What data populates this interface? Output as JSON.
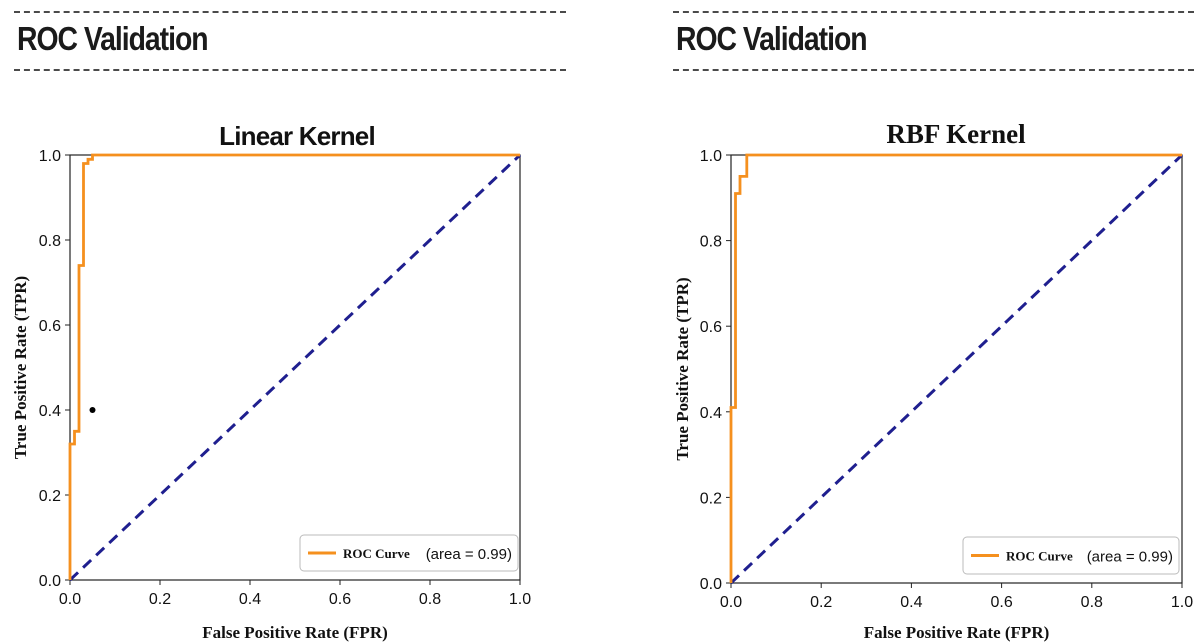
{
  "headers": [
    {
      "title": "ROC Validation"
    },
    {
      "title": "ROC Validation"
    }
  ],
  "chart_data": [
    {
      "type": "line",
      "title": "Linear Kernel",
      "xlabel": "False Positive Rate (FPR)",
      "ylabel": "True Positive Rate (TPR)",
      "xlim": [
        0.0,
        1.0
      ],
      "ylim": [
        0.0,
        1.0
      ],
      "xticks": [
        "0.0",
        "0.2",
        "0.4",
        "0.6",
        "0.8",
        "1.0"
      ],
      "yticks": [
        "0.0",
        "0.2",
        "0.4",
        "0.6",
        "0.8",
        "1.0"
      ],
      "grid": false,
      "legend_position": "lower-right",
      "legend": {
        "label": "ROC Curve",
        "area_text": "(area = 0.99)"
      },
      "series": [
        {
          "name": "ROC Curve",
          "color": "#f5901e",
          "style": "solid",
          "x": [
            0.0,
            0.0,
            0.01,
            0.01,
            0.02,
            0.02,
            0.03,
            0.03,
            0.04,
            0.04,
            0.05,
            0.05,
            1.0
          ],
          "y": [
            0.0,
            0.32,
            0.32,
            0.35,
            0.35,
            0.74,
            0.74,
            0.98,
            0.98,
            0.99,
            0.99,
            1.0,
            1.0
          ]
        },
        {
          "name": "",
          "color": "#1f1f8f",
          "style": "dashed",
          "x": [
            0.0,
            1.0
          ],
          "y": [
            0.0,
            1.0
          ]
        }
      ],
      "annotations": [
        {
          "type": "dot",
          "x": 0.05,
          "y": 0.4,
          "color": "#000000"
        }
      ]
    },
    {
      "type": "line",
      "title": "RBF Kernel",
      "xlabel": "False Positive Rate (FPR)",
      "ylabel": "True Positive Rate (TPR)",
      "xlim": [
        0.0,
        1.0
      ],
      "ylim": [
        0.0,
        1.0
      ],
      "xticks": [
        "0.0",
        "0.2",
        "0.4",
        "0.6",
        "0.8",
        "1.0"
      ],
      "yticks": [
        "0.0",
        "0.2",
        "0.4",
        "0.6",
        "0.8",
        "1.0"
      ],
      "grid": false,
      "legend_position": "lower-right",
      "legend": {
        "label": "ROC Curve",
        "area_text": "(area = 0.99)"
      },
      "series": [
        {
          "name": "ROC Curve",
          "color": "#f5901e",
          "style": "solid",
          "x": [
            0.0,
            0.0,
            0.01,
            0.01,
            0.02,
            0.02,
            0.035,
            0.035,
            1.0
          ],
          "y": [
            0.0,
            0.41,
            0.41,
            0.91,
            0.91,
            0.95,
            0.95,
            1.0,
            1.0
          ]
        },
        {
          "name": "",
          "color": "#1f1f8f",
          "style": "dashed",
          "x": [
            0.0,
            1.0
          ],
          "y": [
            0.0,
            1.0
          ]
        }
      ],
      "annotations": []
    }
  ]
}
